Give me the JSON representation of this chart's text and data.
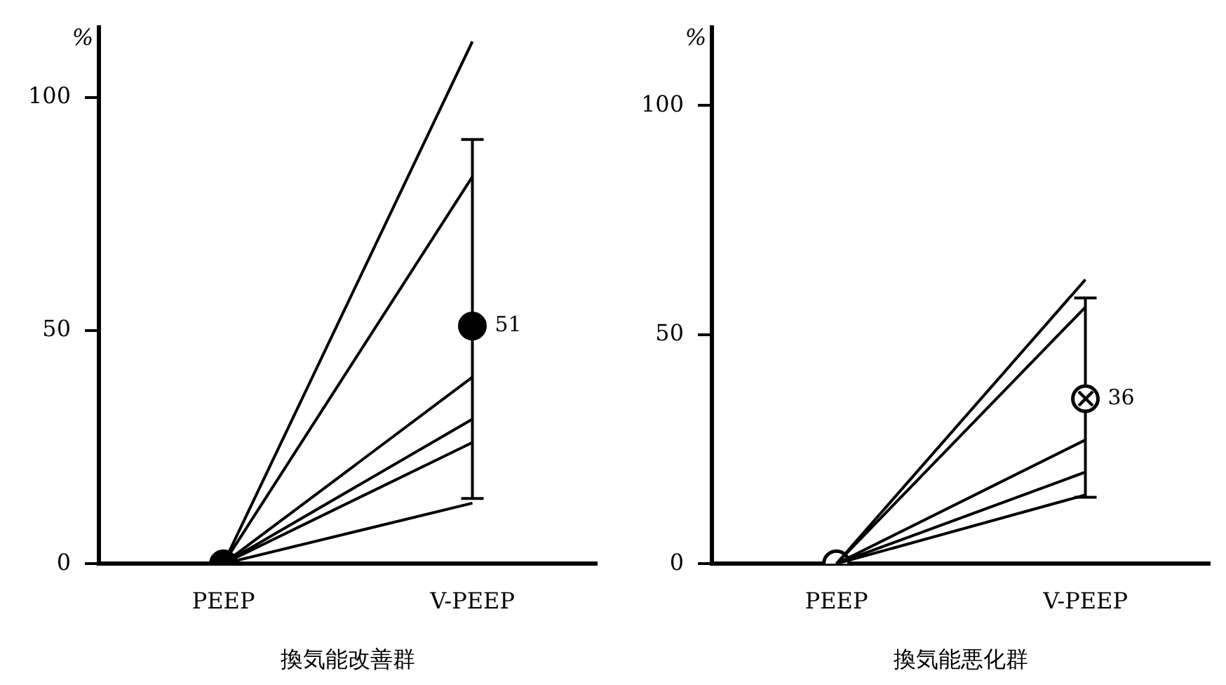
{
  "chart_data": [
    {
      "type": "line",
      "xlabel": "換気能改善群",
      "ylabel": "%",
      "categories": [
        "PEEP",
        "V-PEEP"
      ],
      "ylim": [
        0,
        115
      ],
      "yticks": [
        0,
        50,
        100
      ],
      "grid": false,
      "legend": false,
      "series": [
        {
          "color": "#000000",
          "marker": "none",
          "values": [
            0,
            112
          ]
        },
        {
          "color": "#000000",
          "marker": "none",
          "values": [
            0,
            83
          ]
        },
        {
          "color": "#000000",
          "marker": "none",
          "values": [
            0,
            40
          ]
        },
        {
          "color": "#000000",
          "marker": "none",
          "values": [
            0,
            31
          ]
        },
        {
          "color": "#000000",
          "marker": "none",
          "values": [
            0,
            26
          ]
        },
        {
          "color": "#000000",
          "marker": "none",
          "values": [
            0,
            13
          ]
        },
        {
          "type": "scatter",
          "color": "#000000",
          "marker": "circle",
          "values": [
            0,
            null
          ]
        },
        {
          "type": "scatter",
          "color": "#000000",
          "marker": "circle",
          "values": [
            null,
            51
          ],
          "errors": [
            null,
            [
              14,
              91
            ]
          ],
          "value_labels": [
            null,
            "51"
          ]
        }
      ]
    },
    {
      "type": "line",
      "xlabel": "換気能悪化群",
      "ylabel": "%",
      "categories": [
        "PEEP",
        "V-PEEP"
      ],
      "ylim": [
        0,
        117
      ],
      "yticks": [
        0,
        50,
        100
      ],
      "grid": false,
      "legend": false,
      "series": [
        {
          "color": "#000000",
          "marker": "none",
          "values": [
            0,
            62
          ]
        },
        {
          "color": "#000000",
          "marker": "none",
          "values": [
            0,
            56
          ]
        },
        {
          "color": "#000000",
          "marker": "none",
          "values": [
            0,
            27
          ]
        },
        {
          "color": "#000000",
          "marker": "none",
          "values": [
            0,
            20
          ]
        },
        {
          "color": "#000000",
          "marker": "none",
          "values": [
            0,
            15
          ]
        },
        {
          "type": "scatter",
          "color": "#ffffff",
          "marker": "circle",
          "values": [
            0,
            null
          ]
        },
        {
          "type": "scatter",
          "color": "#ffffff",
          "marker": "circle",
          "values": [
            null,
            36
          ],
          "errors": [
            null,
            [
              14.5,
              58
            ]
          ],
          "value_labels": [
            null,
            "36"
          ]
        }
      ]
    }
  ]
}
